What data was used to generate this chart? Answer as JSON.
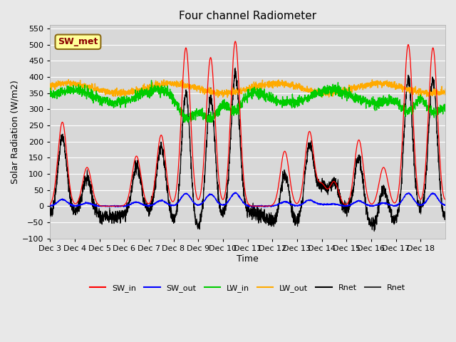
{
  "title": "Four channel Radiometer",
  "xlabel": "Time",
  "ylabel": "Solar Radiation (W/m2)",
  "ylim": [
    -100,
    560
  ],
  "yticks": [
    -100,
    -50,
    0,
    50,
    100,
    150,
    200,
    250,
    300,
    350,
    400,
    450,
    500,
    550
  ],
  "background_color": "#e8e8e8",
  "plot_bg_color": "#d8d8d8",
  "annotation_text": "SW_met",
  "annotation_bg": "#ffff99",
  "annotation_border": "#8B6914",
  "series_colors": {
    "SW_in": "#ff0000",
    "SW_out": "#0000ff",
    "LW_in": "#00cc00",
    "LW_out": "#ffaa00",
    "Rnet_black": "#000000",
    "Rnet_dark": "#333333"
  },
  "x_tick_labels": [
    "Dec 3",
    "Dec 4",
    "Dec 5",
    "Dec 6",
    "Dec 7",
    "Dec 8",
    "Dec 9",
    "Dec 10",
    "Dec 11",
    "Dec 12",
    "Dec 13",
    "Dec 14",
    "Dec 15",
    "Dec 16",
    "Dec 17",
    "Dec 18"
  ],
  "n_days": 16,
  "legend_entries": [
    "SW_in",
    "SW_out",
    "LW_in",
    "LW_out",
    "Rnet",
    "Rnet"
  ],
  "legend_colors": [
    "#ff0000",
    "#0000ff",
    "#00cc00",
    "#ffaa00",
    "#000000",
    "#333333"
  ]
}
